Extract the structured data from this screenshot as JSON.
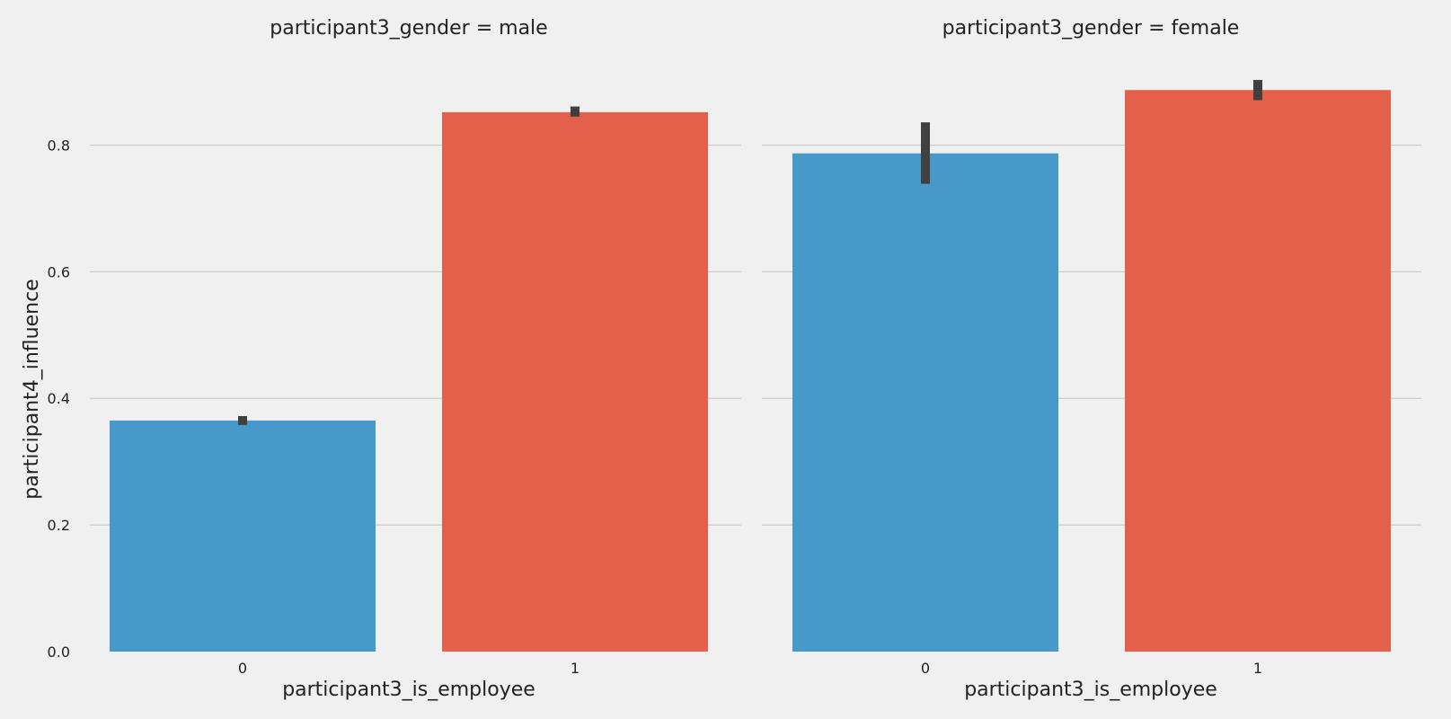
{
  "chart_data": {
    "type": "bar",
    "ylabel": "participant4_influence",
    "ylim": [
      0,
      0.9
    ],
    "yticks": [
      "0.0",
      "0.2",
      "0.4",
      "0.6",
      "0.8"
    ],
    "yticks_values": [
      0,
      0.2,
      0.4,
      0.6,
      0.8
    ],
    "grid": true,
    "colors": {
      "0": "#4699c8",
      "1": "#e5604a",
      "errorbar": "#404040",
      "background": "#f0f0f0"
    },
    "facets": [
      {
        "title": "participant3_gender = male",
        "xlabel": "participant3_is_employee",
        "categories": [
          "0",
          "1"
        ],
        "values": [
          0.365,
          0.852
        ],
        "ci": [
          [
            0.358,
            0.372
          ],
          [
            0.845,
            0.861
          ]
        ]
      },
      {
        "title": "participant3_gender = female",
        "xlabel": "participant3_is_employee",
        "categories": [
          "0",
          "1"
        ],
        "values": [
          0.787,
          0.887
        ],
        "ci": [
          [
            0.739,
            0.836
          ],
          [
            0.871,
            0.903
          ]
        ]
      }
    ]
  }
}
